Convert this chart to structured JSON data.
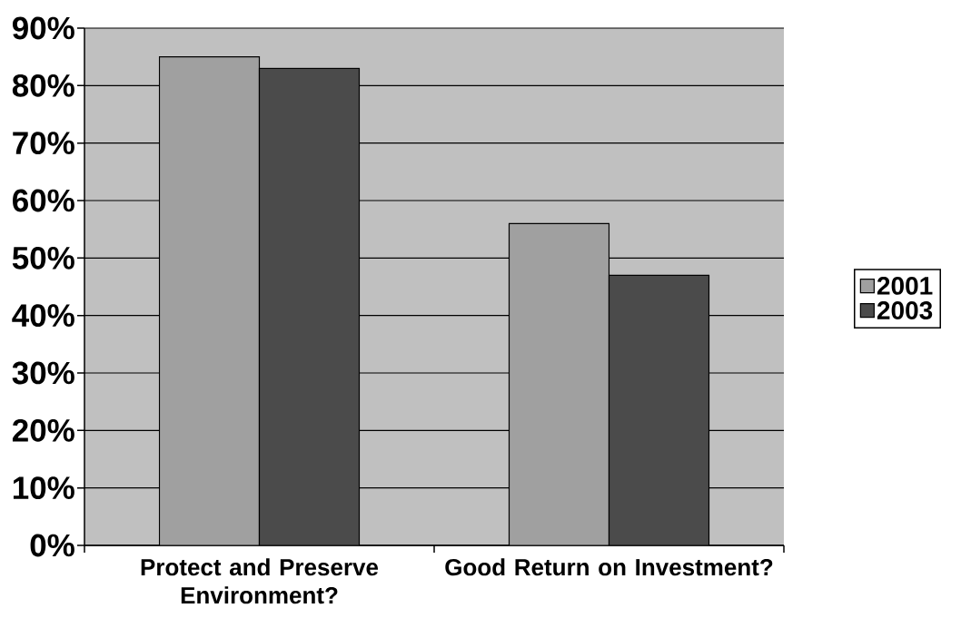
{
  "chart_data": {
    "type": "bar",
    "categories": [
      "Protect and Preserve Environment?",
      "Good Return on Investment?"
    ],
    "series": [
      {
        "name": "2001",
        "color": "#a0a0a0",
        "values": [
          85,
          56
        ]
      },
      {
        "name": "2003",
        "color": "#4b4b4b",
        "values": [
          83,
          47
        ]
      }
    ],
    "ylim": [
      0,
      90
    ],
    "yticks": [
      {
        "value": 0,
        "label": "0%"
      },
      {
        "value": 10,
        "label": "10%"
      },
      {
        "value": 20,
        "label": "20%"
      },
      {
        "value": 30,
        "label": "30%"
      },
      {
        "value": 40,
        "label": "40%"
      },
      {
        "value": 50,
        "label": "50%"
      },
      {
        "value": 60,
        "label": "60%"
      },
      {
        "value": 70,
        "label": "70%"
      },
      {
        "value": 80,
        "label": "80%"
      },
      {
        "value": 90,
        "label": "90%"
      }
    ],
    "grid": "y",
    "legend": "right"
  }
}
